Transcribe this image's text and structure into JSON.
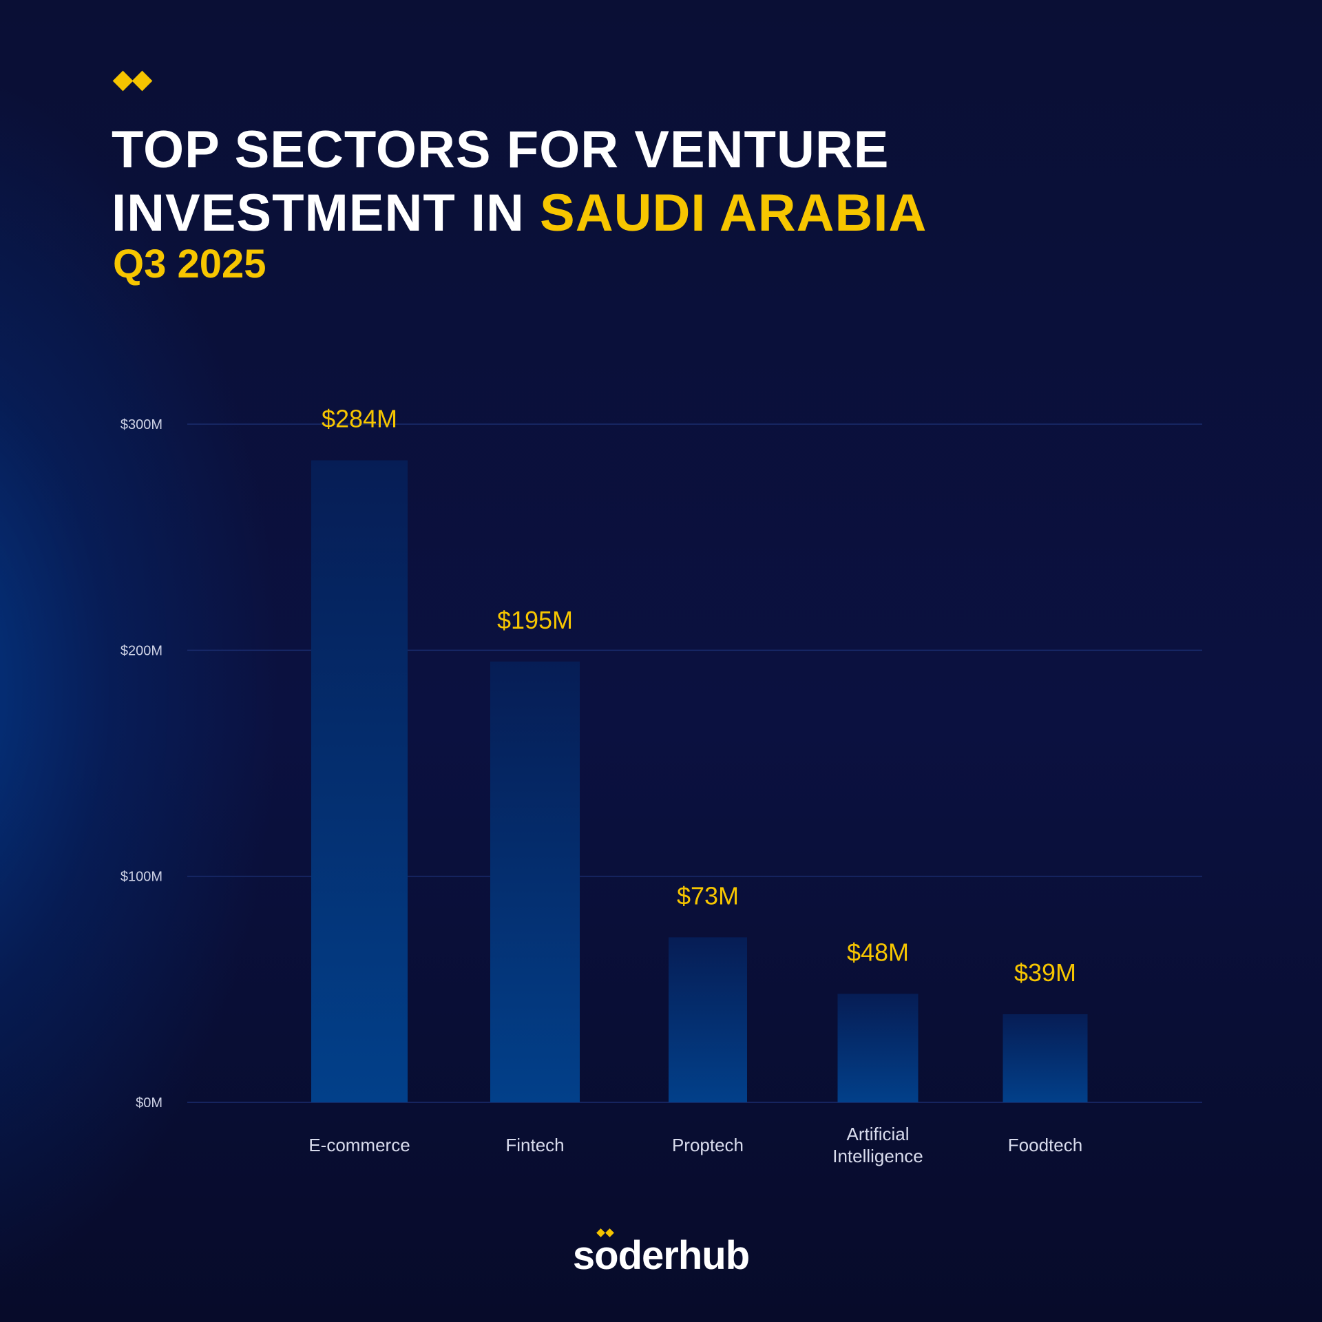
{
  "header": {
    "title_line1": "TOP SECTORS FOR VENTURE",
    "title_line2_plain": "INVESTMENT IN ",
    "title_line2_accent": "SAUDI ARABIA",
    "subtitle": "Q3 2025"
  },
  "brand": {
    "prefix": "s",
    "o_letter": "o",
    "suffix": "derhub"
  },
  "colors": {
    "accent": "#f7c600",
    "bar_top": "#061d55",
    "bar_bottom": "#02408a",
    "grid": "#1a2c6e"
  },
  "chart_data": {
    "type": "bar",
    "categories": [
      [
        "E-commerce"
      ],
      [
        "Fintech"
      ],
      [
        "Proptech"
      ],
      [
        "Artificial",
        "Intelligence"
      ],
      [
        "Foodtech"
      ]
    ],
    "values": [
      284,
      195,
      73,
      48,
      39
    ],
    "data_labels": [
      "$284M",
      "$195M",
      "$73M",
      "$48M",
      "$39M"
    ],
    "y_ticks": [
      0,
      100,
      200,
      300
    ],
    "y_tick_labels": [
      "$0M",
      "$100M",
      "$200M",
      "$300M"
    ],
    "ylim": [
      0,
      300
    ],
    "grid": true
  }
}
